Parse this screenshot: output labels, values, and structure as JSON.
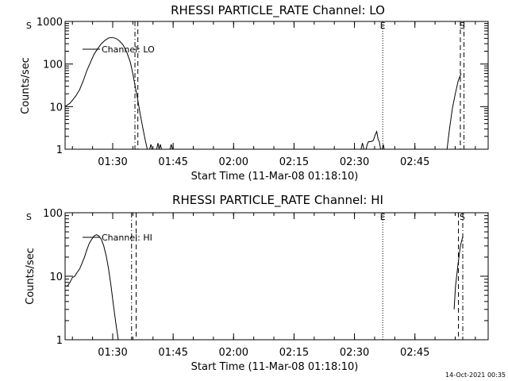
{
  "footer_timestamp": "14-Oct-2021 00:35",
  "event_markers": [
    {
      "label": "S",
      "time": 1.153
    },
    {
      "label": "E",
      "time": 2.617
    },
    {
      "label": "S",
      "time": 2.946
    }
  ],
  "chart_data": [
    {
      "type": "line",
      "title": "RHESSI PARTICLE_RATE Channel: LO",
      "xlabel": "Start Time (11-Mar-08 01:18:10)",
      "ylabel": "Counts/sec",
      "y_scale": "log",
      "ylim": [
        1,
        1000
      ],
      "xlim": [
        1.303,
        3.053
      ],
      "x_unit": "hours UT",
      "x_tick_labels": [
        "01:30",
        "01:45",
        "02:00",
        "02:15",
        "02:30",
        "02:45"
      ],
      "x_ticks": [
        1.5,
        1.75,
        2.0,
        2.25,
        2.5,
        2.75
      ],
      "y_tick_labels": [
        "1",
        "10",
        "100",
        "1000"
      ],
      "y_ticks": [
        1,
        10,
        100,
        1000
      ],
      "vlines": [
        {
          "style": "dash-dot",
          "time": 1.592
        },
        {
          "style": "dashed",
          "time": 1.604
        },
        {
          "style": "dotted",
          "time": 2.617
        },
        {
          "style": "dashed",
          "time": 2.938
        },
        {
          "style": "dash-dot",
          "time": 2.953
        }
      ],
      "series": [
        {
          "name": "Channel: LO",
          "segments": [
            [
              [
                1.303,
                10
              ],
              [
                1.313,
                11
              ],
              [
                1.323,
                12
              ],
              [
                1.333,
                14
              ],
              [
                1.348,
                18
              ],
              [
                1.363,
                25
              ],
              [
                1.378,
                40
              ],
              [
                1.393,
                70
              ],
              [
                1.408,
                110
              ],
              [
                1.423,
                170
              ],
              [
                1.438,
                230
              ],
              [
                1.453,
                300
              ],
              [
                1.468,
                360
              ],
              [
                1.483,
                410
              ],
              [
                1.498,
                420
              ],
              [
                1.513,
                400
              ],
              [
                1.528,
                350
              ],
              [
                1.543,
                280
              ],
              [
                1.558,
                190
              ],
              [
                1.573,
                110
              ],
              [
                1.583,
                60
              ],
              [
                1.593,
                30
              ],
              [
                1.603,
                15
              ],
              [
                1.613,
                7
              ],
              [
                1.623,
                3.5
              ],
              [
                1.633,
                1.8
              ],
              [
                1.643,
                1
              ]
            ],
            [
              [
                1.653,
                1
              ],
              [
                1.658,
                1.3
              ],
              [
                1.663,
                1
              ]
            ],
            [
              [
                1.682,
                1
              ],
              [
                1.687,
                1.4
              ],
              [
                1.692,
                1
              ],
              [
                1.697,
                1.3
              ],
              [
                1.702,
                1
              ]
            ],
            [
              [
                1.737,
                1
              ],
              [
                1.742,
                1.3
              ],
              [
                1.747,
                1
              ]
            ],
            [
              [
                2.527,
                1
              ],
              [
                2.533,
                1.4
              ],
              [
                2.539,
                1
              ]
            ],
            [
              [
                2.548,
                1
              ],
              [
                2.553,
                1.3
              ],
              [
                2.558,
                1.5
              ],
              [
                2.568,
                1.5
              ],
              [
                2.578,
                1.6
              ],
              [
                2.586,
                2.2
              ],
              [
                2.592,
                2.6
              ],
              [
                2.598,
                1.7
              ],
              [
                2.603,
                1.5
              ],
              [
                2.608,
                1
              ]
            ],
            [
              [
                2.615,
                1
              ],
              [
                2.619,
                1.3
              ],
              [
                2.623,
                1
              ]
            ],
            [
              [
                2.883,
                1
              ],
              [
                2.893,
                3
              ],
              [
                2.905,
                9
              ],
              [
                2.917,
                20
              ],
              [
                2.929,
                40
              ],
              [
                2.941,
                60
              ]
            ]
          ]
        }
      ]
    },
    {
      "type": "line",
      "title": "RHESSI PARTICLE_RATE Channel: HI",
      "xlabel": "Start Time (11-Mar-08 01:18:10)",
      "ylabel": "Counts/sec",
      "y_scale": "log",
      "ylim": [
        1,
        100
      ],
      "xlim": [
        1.303,
        3.053
      ],
      "x_unit": "hours UT",
      "x_tick_labels": [
        "01:30",
        "01:45",
        "02:00",
        "02:15",
        "02:30",
        "02:45"
      ],
      "x_ticks": [
        1.5,
        1.75,
        2.0,
        2.25,
        2.5,
        2.75
      ],
      "y_tick_labels": [
        "1",
        "10",
        "100"
      ],
      "y_ticks": [
        1,
        10,
        100
      ],
      "vlines": [
        {
          "style": "dash-dot",
          "time": 1.578
        },
        {
          "style": "dashed",
          "time": 1.597
        },
        {
          "style": "dotted",
          "time": 2.617
        },
        {
          "style": "dashed",
          "time": 2.93
        },
        {
          "style": "dash-dot",
          "time": 2.948
        }
      ],
      "series": [
        {
          "name": "Channel: HI",
          "segments": [
            [
              [
                1.303,
                7
              ],
              [
                1.313,
                7
              ],
              [
                1.323,
                8
              ],
              [
                1.333,
                9.5
              ],
              [
                1.343,
                10
              ],
              [
                1.353,
                11.5
              ],
              [
                1.363,
                13
              ],
              [
                1.373,
                16
              ],
              [
                1.383,
                20
              ],
              [
                1.393,
                26
              ],
              [
                1.403,
                33
              ],
              [
                1.413,
                38
              ],
              [
                1.423,
                43
              ],
              [
                1.433,
                45
              ],
              [
                1.443,
                43
              ],
              [
                1.453,
                38
              ],
              [
                1.463,
                30
              ],
              [
                1.473,
                21
              ],
              [
                1.483,
                13
              ],
              [
                1.493,
                7
              ],
              [
                1.503,
                3.5
              ],
              [
                1.513,
                1.8
              ],
              [
                1.523,
                1
              ]
            ],
            [
              [
                2.912,
                3
              ],
              [
                2.918,
                7
              ],
              [
                2.928,
                15
              ],
              [
                2.938,
                30
              ],
              [
                2.948,
                42
              ]
            ]
          ]
        }
      ]
    }
  ]
}
